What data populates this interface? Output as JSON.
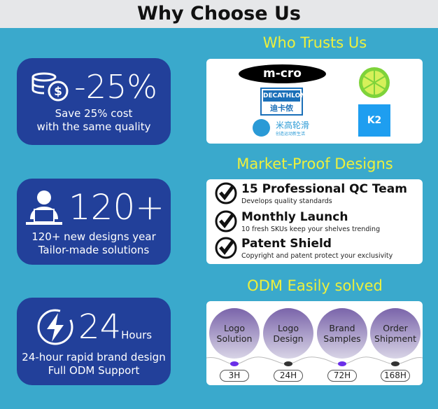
{
  "title": "Why Choose Us",
  "cards": [
    {
      "value": "-25%",
      "line1": "Save 25% cost",
      "line2": "with the same quality",
      "icon": "coins-dollar-icon"
    },
    {
      "value": "120+",
      "line1": "120+ new designs year",
      "line2": "Tailor-made solutions",
      "icon": "person-laptop-icon"
    },
    {
      "value": "24",
      "unit": "Hours",
      "line1": "24-hour rapid brand design",
      "line2": "Full ODM Support",
      "icon": "lightning-icon"
    }
  ],
  "trust": {
    "title": "Who Trusts Us",
    "logos": {
      "micro": "m-cro",
      "decathlon_en": "DECATHLON",
      "decathlon_cn": "迪卡侬",
      "mihigh": "米高轮滑",
      "mihigh_sub": "创造运动新生活",
      "lime": "lime-logo",
      "k2": "K2"
    }
  },
  "market": {
    "title": "Market-Proof Designs",
    "items": [
      {
        "title": "15 Professional QC Team",
        "desc": "Develops quality standards"
      },
      {
        "title": "Monthly Launch",
        "desc": "10 fresh SKUs keep your shelves trending"
      },
      {
        "title": "Patent Shield",
        "desc": "Copyright and patent protect your exclusivity"
      }
    ]
  },
  "odm": {
    "title": "ODM Easily solved",
    "steps": [
      {
        "l1": "Logo",
        "l2": "Solution",
        "time": "3H",
        "dot": "#6a2ee8"
      },
      {
        "l1": "Logo",
        "l2": "Design",
        "time": "24H",
        "dot": "#333333"
      },
      {
        "l1": "Brand",
        "l2": "Samples",
        "time": "72H",
        "dot": "#6a2ee8"
      },
      {
        "l1": "Order",
        "l2": "Shipment",
        "time": "168H",
        "dot": "#333333"
      }
    ]
  }
}
